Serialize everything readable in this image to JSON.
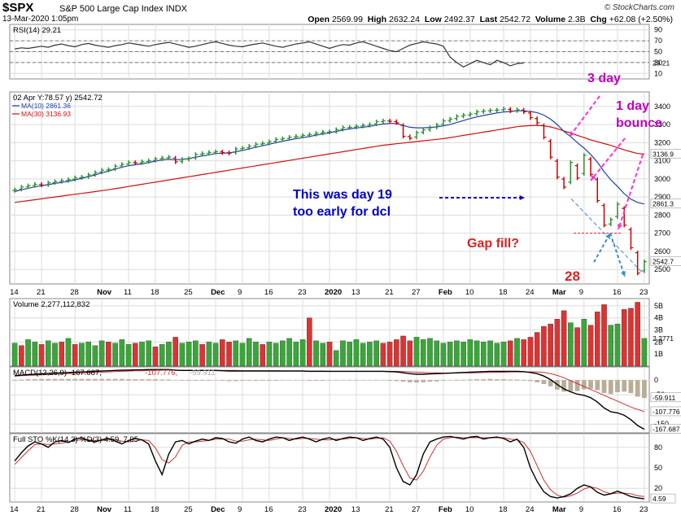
{
  "header": {
    "symbol": "$SPX",
    "name": "S&P 500 Large Cap Index",
    "exchange": "INDX",
    "date": "13-Mar-2020 1:05pm",
    "brand": "© StockCharts.com",
    "open_label": "Open",
    "open": "2569.99",
    "high_label": "High",
    "high": "2632.24",
    "low_label": "Low",
    "low": "2492.37",
    "last_label": "Last",
    "last": "2542.72",
    "volume_label": "Volume",
    "volume": "2.3B",
    "chg_label": "Chg",
    "chg": "+62.08 (+2.50%)"
  },
  "colors": {
    "up": "#2e8b2e",
    "down": "#cc0000",
    "ma10": "#1f3fa8",
    "ma30": "#cc1111",
    "annotation_purple": "#c000c0",
    "annotation_blue": "#0000cc",
    "annotation_red": "#dd2222",
    "grid": "#dcdcdc",
    "panel_bg": "#ffffff"
  },
  "chart_data": [
    {
      "type": "line",
      "panel": "rsi",
      "legend": "RSI(14) 29.21",
      "ylim": [
        0,
        100
      ],
      "y_ticks": [
        "90",
        "70",
        "50",
        "30",
        "10"
      ],
      "last_label": "29.21",
      "reference_lines": [
        70,
        50,
        30
      ],
      "values": [
        55,
        57,
        56,
        58,
        60,
        58,
        62,
        64,
        61,
        59,
        63,
        65,
        62,
        60,
        58,
        61,
        63,
        66,
        64,
        62,
        60,
        63,
        65,
        67,
        64,
        61,
        58,
        60,
        63,
        66,
        68,
        65,
        62,
        60,
        59,
        62,
        64,
        66,
        63,
        60,
        58,
        61,
        64,
        66,
        68,
        64,
        60,
        56,
        60,
        63,
        62,
        66,
        68,
        64,
        60,
        56,
        52,
        50,
        56,
        62,
        65,
        68,
        66,
        64,
        60,
        40,
        30,
        22,
        28,
        34,
        30,
        26,
        34,
        30,
        24,
        28,
        29.21
      ]
    },
    {
      "type": "candlestick",
      "panel": "price",
      "legend": [
        "02 Apr Y:78.57 y) 2542.72",
        "MA(10) 2861.36",
        "MA(30) 3136.93"
      ],
      "ylim": [
        2420,
        3480
      ],
      "y_ticks": [
        "3400",
        "3300",
        "3200",
        "3100",
        "3000",
        "2900",
        "2800",
        "2700",
        "2600",
        "2500"
      ],
      "right_labels": [
        "3136.9",
        "2861.3",
        "2542.7"
      ],
      "x_ticks": [
        "14",
        "21",
        "28",
        "Nov",
        "11",
        "18",
        "25",
        "Dec",
        "9",
        "16",
        "23",
        "2020",
        "13",
        "21",
        "27",
        "Feb",
        "10",
        "18",
        "24",
        "Mar",
        "9",
        "16",
        "23"
      ],
      "closes": [
        2940,
        2955,
        2962,
        2970,
        2966,
        2978,
        2985,
        2990,
        2996,
        3006,
        3010,
        3022,
        3035,
        3048,
        3052,
        3070,
        3080,
        3090,
        3088,
        3095,
        3100,
        3110,
        3115,
        3120,
        3094,
        3108,
        3112,
        3135,
        3140,
        3146,
        3150,
        3145,
        3142,
        3165,
        3170,
        3180,
        3191,
        3196,
        3205,
        3218,
        3222,
        3230,
        3235,
        3240,
        3245,
        3252,
        3258,
        3260,
        3272,
        3283,
        3285,
        3290,
        3295,
        3300,
        3315,
        3320,
        3318,
        3310,
        3235,
        3225,
        3255,
        3270,
        3283,
        3297,
        3320,
        3330,
        3345,
        3352,
        3358,
        3370,
        3375,
        3378,
        3380,
        3386,
        3375,
        3382,
        3370,
        3338,
        3310,
        3230,
        3120,
        3010,
        2955,
        3090,
        3005,
        3130,
        3025,
        2880,
        2745,
        2775,
        2860,
        2745,
        2620,
        2480,
        2542.72
      ],
      "ma10": [
        2930,
        2940,
        2948,
        2956,
        2962,
        2968,
        2975,
        2980,
        2987,
        2995,
        3003,
        3012,
        3022,
        3034,
        3043,
        3054,
        3064,
        3073,
        3078,
        3083,
        3090,
        3098,
        3104,
        3109,
        3106,
        3108,
        3112,
        3120,
        3127,
        3133,
        3140,
        3142,
        3143,
        3150,
        3157,
        3165,
        3175,
        3183,
        3191,
        3200,
        3208,
        3215,
        3222,
        3228,
        3234,
        3241,
        3248,
        3254,
        3262,
        3270,
        3276,
        3281,
        3285,
        3290,
        3297,
        3303,
        3306,
        3306,
        3295,
        3285,
        3282,
        3282,
        3284,
        3287,
        3293,
        3300,
        3311,
        3322,
        3333,
        3342,
        3350,
        3357,
        3364,
        3369,
        3372,
        3376,
        3376,
        3372,
        3366,
        3352,
        3330,
        3300,
        3262,
        3234,
        3200,
        3170,
        3135,
        3092,
        3040,
        2995,
        2958,
        2918,
        2888,
        2870,
        2861.36
      ],
      "ma30": [
        2870,
        2875,
        2880,
        2885,
        2890,
        2895,
        2900,
        2905,
        2910,
        2915,
        2920,
        2925,
        2930,
        2935,
        2940,
        2946,
        2952,
        2958,
        2964,
        2970,
        2976,
        2982,
        2988,
        2994,
        3000,
        3006,
        3012,
        3018,
        3024,
        3030,
        3036,
        3042,
        3048,
        3054,
        3060,
        3066,
        3072,
        3078,
        3084,
        3090,
        3096,
        3102,
        3108,
        3114,
        3120,
        3126,
        3132,
        3138,
        3144,
        3150,
        3156,
        3162,
        3168,
        3174,
        3180,
        3186,
        3190,
        3194,
        3198,
        3202,
        3206,
        3210,
        3214,
        3218,
        3222,
        3228,
        3234,
        3240,
        3246,
        3252,
        3258,
        3264,
        3270,
        3276,
        3282,
        3288,
        3292,
        3294,
        3295,
        3293,
        3287,
        3277,
        3265,
        3253,
        3240,
        3228,
        3215,
        3205,
        3195,
        3185,
        3173,
        3160,
        3150,
        3140,
        3136.93
      ]
    },
    {
      "type": "bar",
      "panel": "volume",
      "legend": "Volume 2,277,112,832",
      "ylim": [
        0,
        5.6
      ],
      "y_ticks": [
        "5B",
        "4B",
        "3B",
        "2B",
        "1B"
      ],
      "last_label": "2.2771",
      "values": [
        1.9,
        1.7,
        2.2,
        2.0,
        1.8,
        2.1,
        1.9,
        2.0,
        2.3,
        1.8,
        1.9,
        2.0,
        1.7,
        2.1,
        2.0,
        1.9,
        2.2,
        1.8,
        1.9,
        2.0,
        2.1,
        1.6,
        1.8,
        2.0,
        2.4,
        1.9,
        2.0,
        2.1,
        1.8,
        2.0,
        1.9,
        2.2,
        2.0,
        2.1,
        1.9,
        2.3,
        2.0,
        1.8,
        2.0,
        1.9,
        2.1,
        2.3,
        2.0,
        2.2,
        4.0,
        2.1,
        1.9,
        2.0,
        1.3,
        2.1,
        2.0,
        2.2,
        1.9,
        2.0,
        2.1,
        1.9,
        2.0,
        2.2,
        2.5,
        2.1,
        2.4,
        2.2,
        2.3,
        2.1,
        1.9,
        2.0,
        2.1,
        2.0,
        2.2,
        2.1,
        2.0,
        2.1,
        1.9,
        2.0,
        2.1,
        2.3,
        2.2,
        2.4,
        2.8,
        3.3,
        3.5,
        3.9,
        4.6,
        3.6,
        3.2,
        3.9,
        3.4,
        4.5,
        5.1,
        3.4,
        3.5,
        4.7,
        4.8,
        5.3,
        2.3
      ],
      "up": [
        1,
        0,
        1,
        1,
        0,
        1,
        1,
        0,
        1,
        0,
        1,
        1,
        1,
        1,
        0,
        1,
        1,
        1,
        0,
        1,
        1,
        0,
        1,
        1,
        0,
        1,
        1,
        1,
        0,
        1,
        1,
        0,
        0,
        1,
        1,
        1,
        1,
        0,
        1,
        1,
        1,
        1,
        1,
        1,
        0,
        1,
        1,
        0,
        1,
        1,
        1,
        1,
        1,
        1,
        1,
        0,
        0,
        0,
        0,
        0,
        1,
        1,
        1,
        1,
        1,
        1,
        1,
        1,
        1,
        1,
        1,
        1,
        1,
        1,
        0,
        1,
        0,
        0,
        0,
        0,
        0,
        0,
        0,
        1,
        0,
        1,
        0,
        0,
        0,
        1,
        1,
        0,
        0,
        0,
        1
      ]
    },
    {
      "type": "line",
      "panel": "macd",
      "legend": [
        "MACD(12,26,9)",
        "-167.687",
        "-107.776",
        "-59.911"
      ],
      "ylim": [
        -180,
        45
      ],
      "y_ticks": [
        "0",
        "-50",
        "-100",
        "-150"
      ],
      "right_labels": [
        "-59.911",
        "-107.776",
        "-167.687"
      ],
      "macd": [
        15,
        17,
        19,
        20,
        22,
        23,
        24,
        25,
        26,
        27,
        28,
        29,
        30,
        31,
        32,
        33,
        34,
        34,
        35,
        35,
        36,
        36,
        36,
        36,
        34,
        33,
        33,
        33,
        33,
        33,
        33,
        32,
        31,
        31,
        31,
        31,
        31,
        31,
        31,
        31,
        31,
        31,
        31,
        31,
        30,
        30,
        30,
        30,
        30,
        30,
        30,
        30,
        30,
        30,
        30,
        30,
        29,
        28,
        25,
        22,
        20,
        20,
        21,
        22,
        23,
        24,
        25,
        26,
        27,
        28,
        29,
        30,
        30,
        30,
        30,
        30,
        29,
        26,
        22,
        14,
        2,
        -15,
        -30,
        -40,
        -48,
        -52,
        -60,
        -75,
        -95,
        -108,
        -112,
        -120,
        -135,
        -155,
        -167.687
      ],
      "signal": [
        14,
        15,
        16,
        17,
        18,
        19,
        20,
        21,
        22,
        23,
        24,
        25,
        26,
        27,
        28,
        29,
        30,
        31,
        32,
        32,
        33,
        33,
        34,
        34,
        34,
        34,
        34,
        34,
        34,
        34,
        33,
        33,
        33,
        33,
        32,
        32,
        32,
        32,
        32,
        32,
        31,
        31,
        31,
        31,
        31,
        31,
        31,
        30,
        30,
        30,
        30,
        30,
        30,
        30,
        30,
        30,
        30,
        30,
        29,
        28,
        27,
        26,
        25,
        25,
        24,
        24,
        24,
        25,
        25,
        25,
        26,
        26,
        27,
        27,
        28,
        28,
        28,
        28,
        28,
        26,
        22,
        16,
        8,
        -2,
        -12,
        -22,
        -32,
        -42,
        -52,
        -62,
        -72,
        -82,
        -92,
        -100,
        -107.776
      ],
      "histogram": [
        1,
        2,
        3,
        3,
        4,
        4,
        4,
        4,
        4,
        4,
        4,
        4,
        4,
        4,
        4,
        4,
        4,
        3,
        3,
        3,
        3,
        3,
        2,
        2,
        0,
        -1,
        -1,
        -1,
        -1,
        -1,
        0,
        -1,
        -2,
        -2,
        -1,
        -1,
        -1,
        -1,
        -1,
        -1,
        0,
        0,
        0,
        0,
        -1,
        -1,
        -1,
        0,
        0,
        0,
        0,
        0,
        0,
        0,
        0,
        0,
        -1,
        -2,
        -4,
        -6,
        -7,
        -6,
        -4,
        -3,
        -1,
        0,
        1,
        1,
        2,
        3,
        3,
        4,
        3,
        3,
        2,
        2,
        1,
        -2,
        -6,
        -12,
        -20,
        -31,
        -38,
        -38,
        -36,
        -30,
        -28,
        -33,
        -43,
        -46,
        -40,
        -38,
        -43,
        -55,
        -59.911
      ]
    },
    {
      "type": "line",
      "panel": "stochastic",
      "legend": "Full STO %K(14,3) %D(3) 4.59, 7.95",
      "ylim": [
        0,
        100
      ],
      "y_ticks": [
        "80",
        "50",
        "20"
      ],
      "right_labels": [
        "4.59"
      ],
      "k": [
        60,
        72,
        82,
        88,
        85,
        80,
        88,
        90,
        87,
        92,
        94,
        90,
        88,
        91,
        93,
        89,
        85,
        90,
        93,
        91,
        85,
        60,
        40,
        70,
        88,
        90,
        85,
        89,
        92,
        90,
        94,
        93,
        88,
        86,
        92,
        95,
        90,
        88,
        92,
        95,
        94,
        90,
        93,
        95,
        92,
        88,
        92,
        94,
        90,
        93,
        95,
        94,
        90,
        93,
        95,
        92,
        80,
        50,
        30,
        25,
        40,
        70,
        88,
        92,
        95,
        96,
        94,
        92,
        95,
        96,
        92,
        94,
        95,
        93,
        88,
        92,
        80,
        50,
        30,
        15,
        8,
        6,
        8,
        12,
        20,
        25,
        22,
        14,
        10,
        12,
        16,
        12,
        8,
        6,
        4.59
      ],
      "d": [
        55,
        65,
        75,
        84,
        85,
        84,
        85,
        86,
        88,
        90,
        91,
        91,
        90,
        90,
        91,
        91,
        89,
        88,
        89,
        91,
        90,
        79,
        62,
        57,
        66,
        83,
        88,
        88,
        89,
        90,
        92,
        92,
        92,
        89,
        89,
        91,
        92,
        91,
        90,
        92,
        94,
        93,
        92,
        93,
        93,
        92,
        91,
        91,
        92,
        92,
        93,
        94,
        93,
        92,
        93,
        94,
        89,
        74,
        53,
        35,
        32,
        45,
        66,
        83,
        92,
        94,
        95,
        94,
        94,
        94,
        94,
        94,
        94,
        94,
        92,
        91,
        87,
        74,
        53,
        32,
        18,
        10,
        7,
        9,
        13,
        19,
        22,
        20,
        15,
        12,
        13,
        13,
        12,
        9,
        7.95
      ]
    }
  ],
  "annotations": {
    "three_day": "3 day",
    "one_day": "1 day",
    "bounce": "bounce",
    "day19_line1": "This was day 19",
    "day19_line2": "too early for dcl",
    "gap_fill": "Gap fill?",
    "count_28": "28"
  }
}
